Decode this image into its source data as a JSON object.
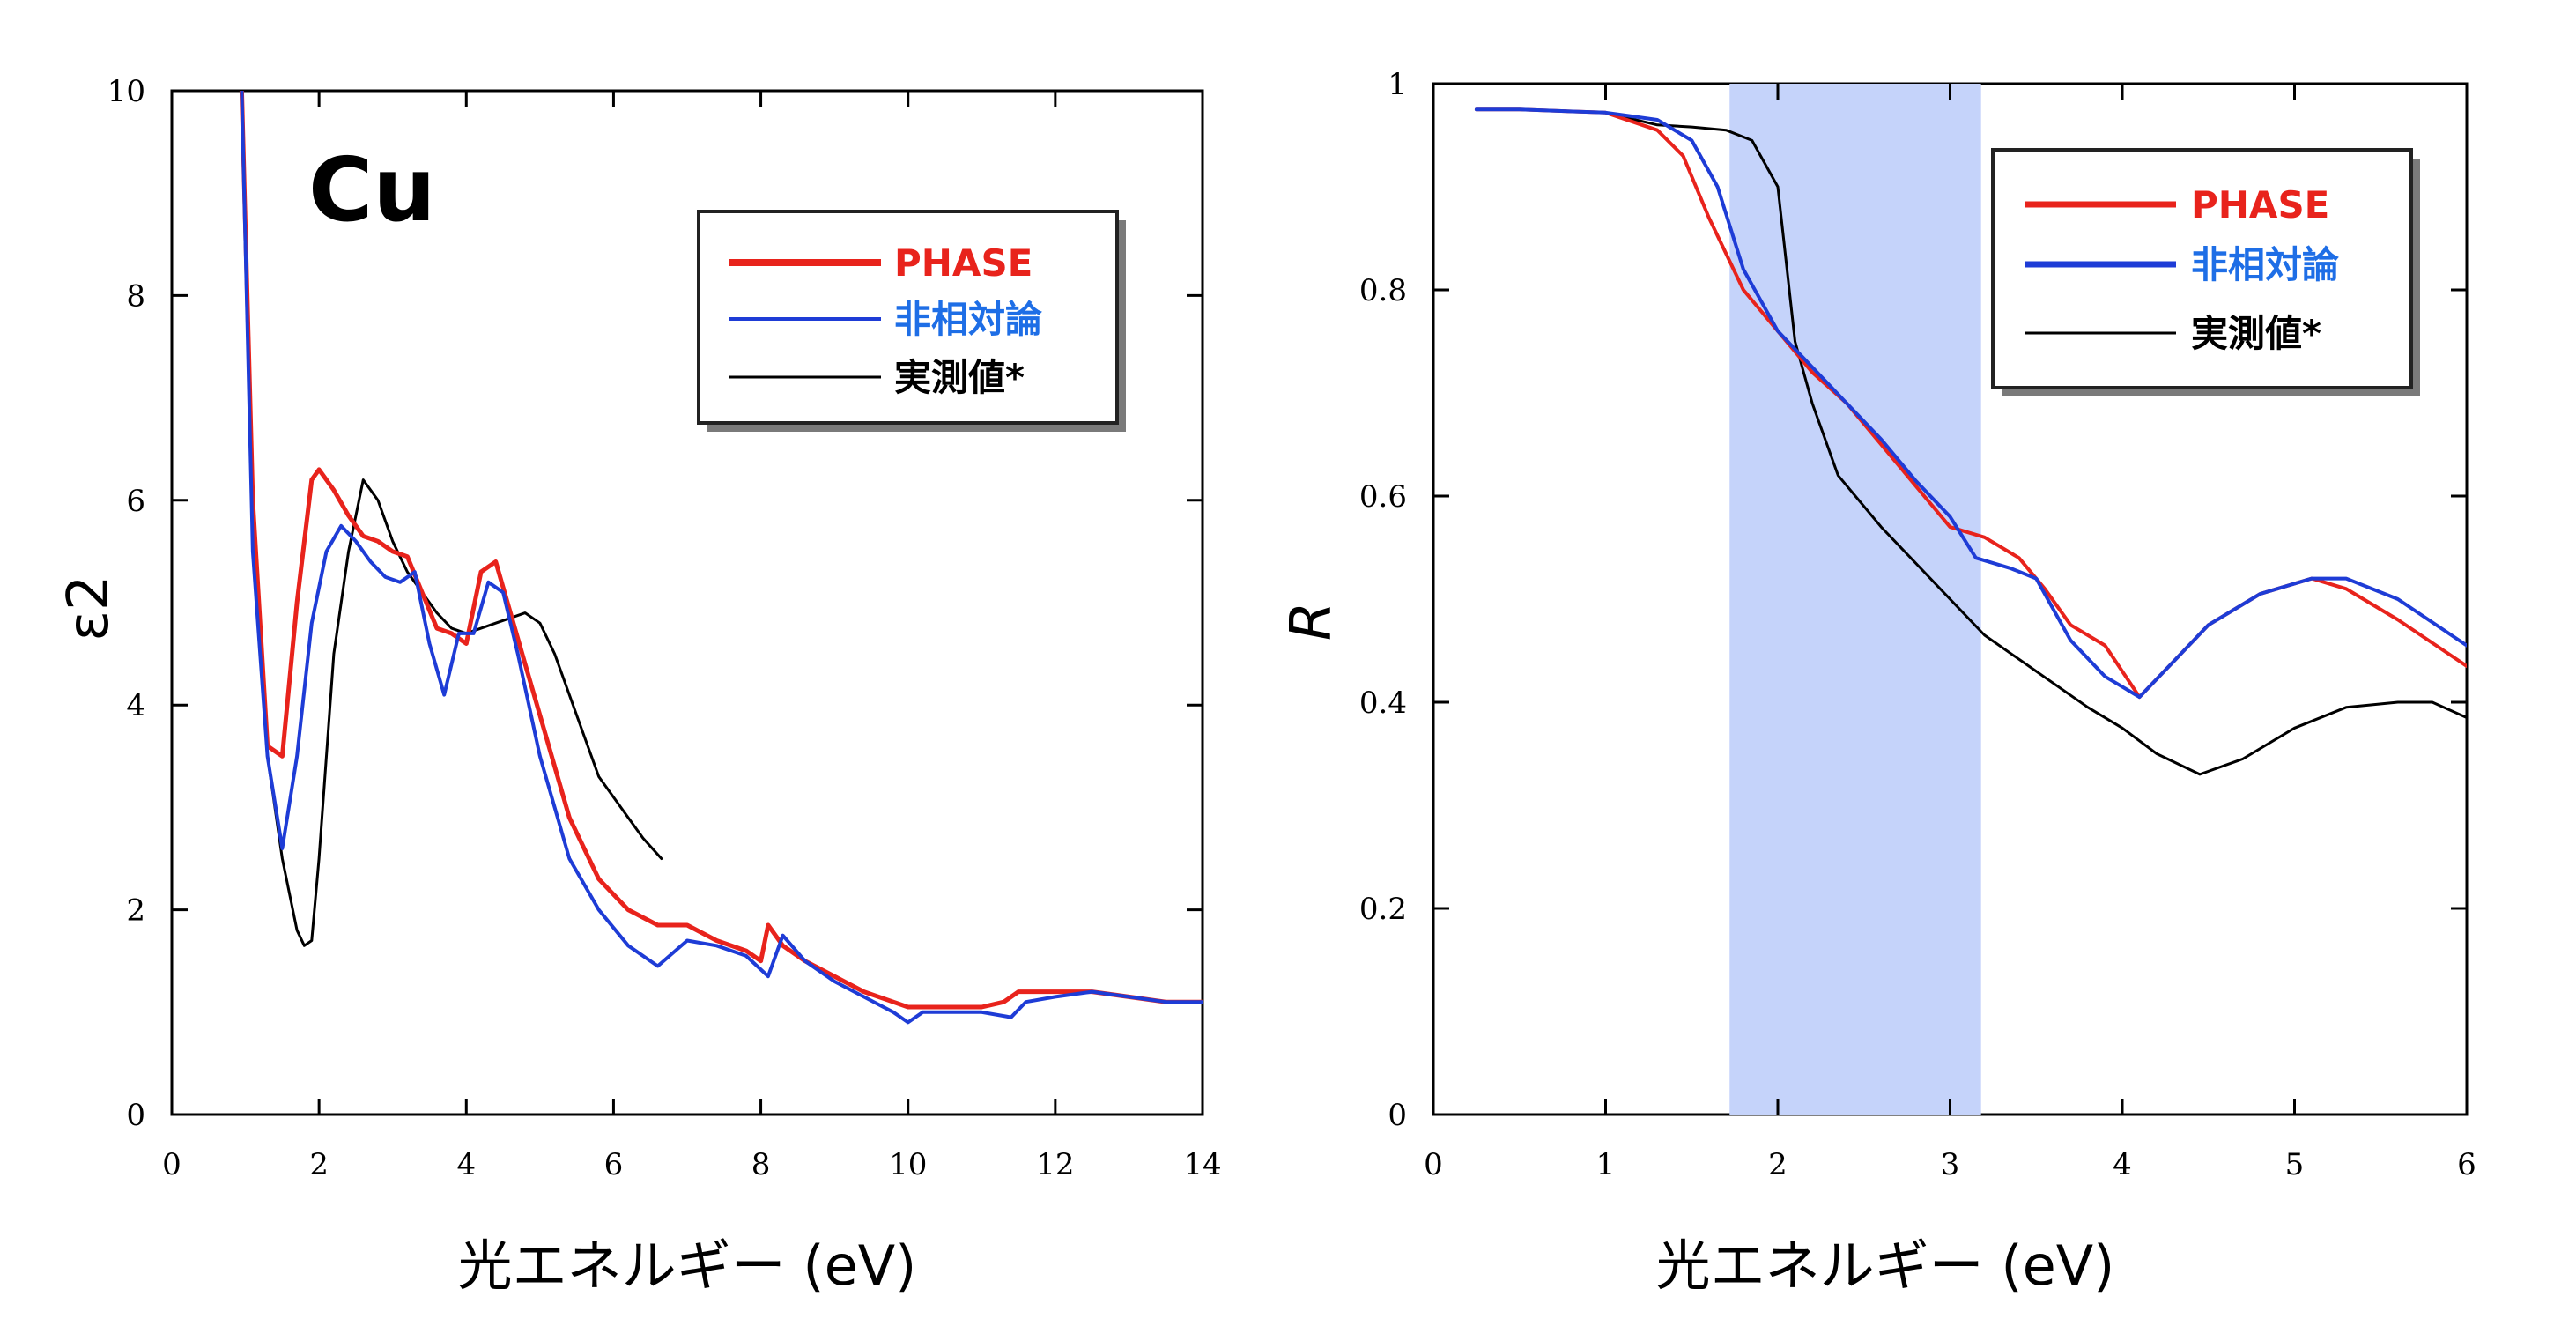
{
  "chart_data": [
    {
      "type": "line",
      "annotation": "Cu",
      "xlabel": "光エネルギー (eV)",
      "ylabel": "ε2",
      "xlim": [
        0,
        14
      ],
      "ylim": [
        0,
        10
      ],
      "xticks": [
        "0",
        "2",
        "4",
        "6",
        "8",
        "10",
        "12",
        "14"
      ],
      "yticks": [
        "0",
        "2",
        "4",
        "6",
        "8",
        "10"
      ],
      "legend_position": "top-right",
      "series": [
        {
          "name": "PHASE",
          "color": "#e8231c",
          "x": [
            0.95,
            1.1,
            1.3,
            1.5,
            1.7,
            1.9,
            2.0,
            2.2,
            2.4,
            2.6,
            2.8,
            3.0,
            3.2,
            3.4,
            3.6,
            3.8,
            4.0,
            4.2,
            4.4,
            4.6,
            4.8,
            5.0,
            5.4,
            5.8,
            6.2,
            6.6,
            7.0,
            7.4,
            7.8,
            8.0,
            8.1,
            8.3,
            8.6,
            9.0,
            9.4,
            9.8,
            10.0,
            10.5,
            11.0,
            11.3,
            11.5,
            12.0,
            12.5,
            13.0,
            13.5,
            14.0
          ],
          "y": [
            10.0,
            6.0,
            3.6,
            3.5,
            5.0,
            6.2,
            6.3,
            6.1,
            5.85,
            5.65,
            5.6,
            5.5,
            5.45,
            5.1,
            4.75,
            4.7,
            4.6,
            5.3,
            5.4,
            4.9,
            4.4,
            3.9,
            2.9,
            2.3,
            2.0,
            1.85,
            1.85,
            1.7,
            1.6,
            1.5,
            1.85,
            1.65,
            1.5,
            1.35,
            1.2,
            1.1,
            1.05,
            1.05,
            1.05,
            1.1,
            1.2,
            1.2,
            1.2,
            1.15,
            1.1,
            1.1
          ]
        },
        {
          "name": "非相対論",
          "color": "#1e3cd6",
          "x": [
            0.95,
            1.1,
            1.3,
            1.5,
            1.7,
            1.9,
            2.1,
            2.3,
            2.5,
            2.7,
            2.9,
            3.1,
            3.3,
            3.5,
            3.7,
            3.9,
            4.1,
            4.3,
            4.5,
            4.7,
            5.0,
            5.4,
            5.8,
            6.2,
            6.6,
            7.0,
            7.4,
            7.8,
            8.1,
            8.3,
            8.6,
            9.0,
            9.4,
            9.8,
            10.0,
            10.2,
            10.6,
            11.0,
            11.4,
            11.6,
            12.0,
            12.5,
            13.0,
            13.5,
            14.0
          ],
          "y": [
            10.0,
            5.5,
            3.5,
            2.6,
            3.5,
            4.8,
            5.5,
            5.75,
            5.6,
            5.4,
            5.25,
            5.2,
            5.3,
            4.6,
            4.1,
            4.7,
            4.7,
            5.2,
            5.1,
            4.5,
            3.5,
            2.5,
            2.0,
            1.65,
            1.45,
            1.7,
            1.65,
            1.55,
            1.35,
            1.75,
            1.5,
            1.3,
            1.15,
            1.0,
            0.9,
            1.0,
            1.0,
            1.0,
            0.95,
            1.1,
            1.15,
            1.2,
            1.15,
            1.1,
            1.1
          ]
        },
        {
          "name": "実測値*",
          "color": "#000000",
          "x": [
            0.95,
            1.1,
            1.3,
            1.5,
            1.7,
            1.8,
            1.9,
            2.0,
            2.2,
            2.4,
            2.6,
            2.8,
            3.0,
            3.2,
            3.4,
            3.6,
            3.8,
            4.0,
            4.2,
            4.4,
            4.6,
            4.8,
            5.0,
            5.2,
            5.4,
            5.6,
            5.8,
            6.0,
            6.2,
            6.4,
            6.65
          ],
          "y": [
            10.0,
            6.0,
            3.5,
            2.5,
            1.8,
            1.65,
            1.7,
            2.5,
            4.5,
            5.5,
            6.2,
            6.0,
            5.6,
            5.3,
            5.1,
            4.9,
            4.75,
            4.7,
            4.75,
            4.8,
            4.85,
            4.9,
            4.8,
            4.5,
            4.1,
            3.7,
            3.3,
            3.1,
            2.9,
            2.7,
            2.5
          ]
        }
      ]
    },
    {
      "type": "line",
      "xlabel": "光エネルギー (eV)",
      "ylabel": "R",
      "xlim": [
        0,
        6
      ],
      "ylim": [
        0,
        1
      ],
      "xticks": [
        "0",
        "1",
        "2",
        "3",
        "4",
        "5",
        "6"
      ],
      "yticks": [
        "0",
        "0.2",
        "0.4",
        "0.6",
        "0.8",
        "1"
      ],
      "highlight_band": {
        "x_from": 1.72,
        "x_to": 3.18,
        "color": "#c5d3fa"
      },
      "legend_position": "top-right",
      "series": [
        {
          "name": "PHASE",
          "color": "#e8231c",
          "x": [
            0.25,
            0.5,
            1.0,
            1.3,
            1.45,
            1.6,
            1.8,
            2.0,
            2.2,
            2.4,
            2.6,
            2.8,
            3.0,
            3.2,
            3.4,
            3.55,
            3.7,
            3.9,
            4.1,
            4.3,
            4.5,
            4.8,
            5.1,
            5.3,
            5.6,
            6.0
          ],
          "y": [
            0.975,
            0.975,
            0.972,
            0.955,
            0.93,
            0.87,
            0.8,
            0.76,
            0.72,
            0.69,
            0.65,
            0.61,
            0.57,
            0.56,
            0.54,
            0.51,
            0.475,
            0.455,
            0.405,
            0.44,
            0.475,
            0.505,
            0.52,
            0.51,
            0.48,
            0.435
          ]
        },
        {
          "name": "非相対論",
          "color": "#1e3cd6",
          "x": [
            0.25,
            0.5,
            1.0,
            1.3,
            1.5,
            1.65,
            1.8,
            2.0,
            2.2,
            2.4,
            2.6,
            2.8,
            3.0,
            3.15,
            3.35,
            3.5,
            3.7,
            3.9,
            4.1,
            4.3,
            4.5,
            4.8,
            5.1,
            5.3,
            5.6,
            6.0
          ],
          "y": [
            0.975,
            0.975,
            0.972,
            0.965,
            0.945,
            0.9,
            0.82,
            0.76,
            0.725,
            0.69,
            0.655,
            0.615,
            0.58,
            0.54,
            0.53,
            0.52,
            0.46,
            0.425,
            0.405,
            0.44,
            0.475,
            0.505,
            0.52,
            0.52,
            0.5,
            0.455
          ]
        },
        {
          "name": "実測値*",
          "color": "#000000",
          "x": [
            0.25,
            0.5,
            1.0,
            1.3,
            1.5,
            1.7,
            1.85,
            2.0,
            2.1,
            2.2,
            2.35,
            2.6,
            2.8,
            3.0,
            3.2,
            3.5,
            3.8,
            4.0,
            4.2,
            4.45,
            4.7,
            5.0,
            5.3,
            5.6,
            5.8,
            6.0
          ],
          "y": [
            0.975,
            0.975,
            0.972,
            0.96,
            0.958,
            0.955,
            0.945,
            0.9,
            0.75,
            0.69,
            0.62,
            0.57,
            0.535,
            0.5,
            0.465,
            0.43,
            0.395,
            0.375,
            0.35,
            0.33,
            0.345,
            0.375,
            0.395,
            0.4,
            0.4,
            0.385
          ]
        }
      ]
    }
  ]
}
